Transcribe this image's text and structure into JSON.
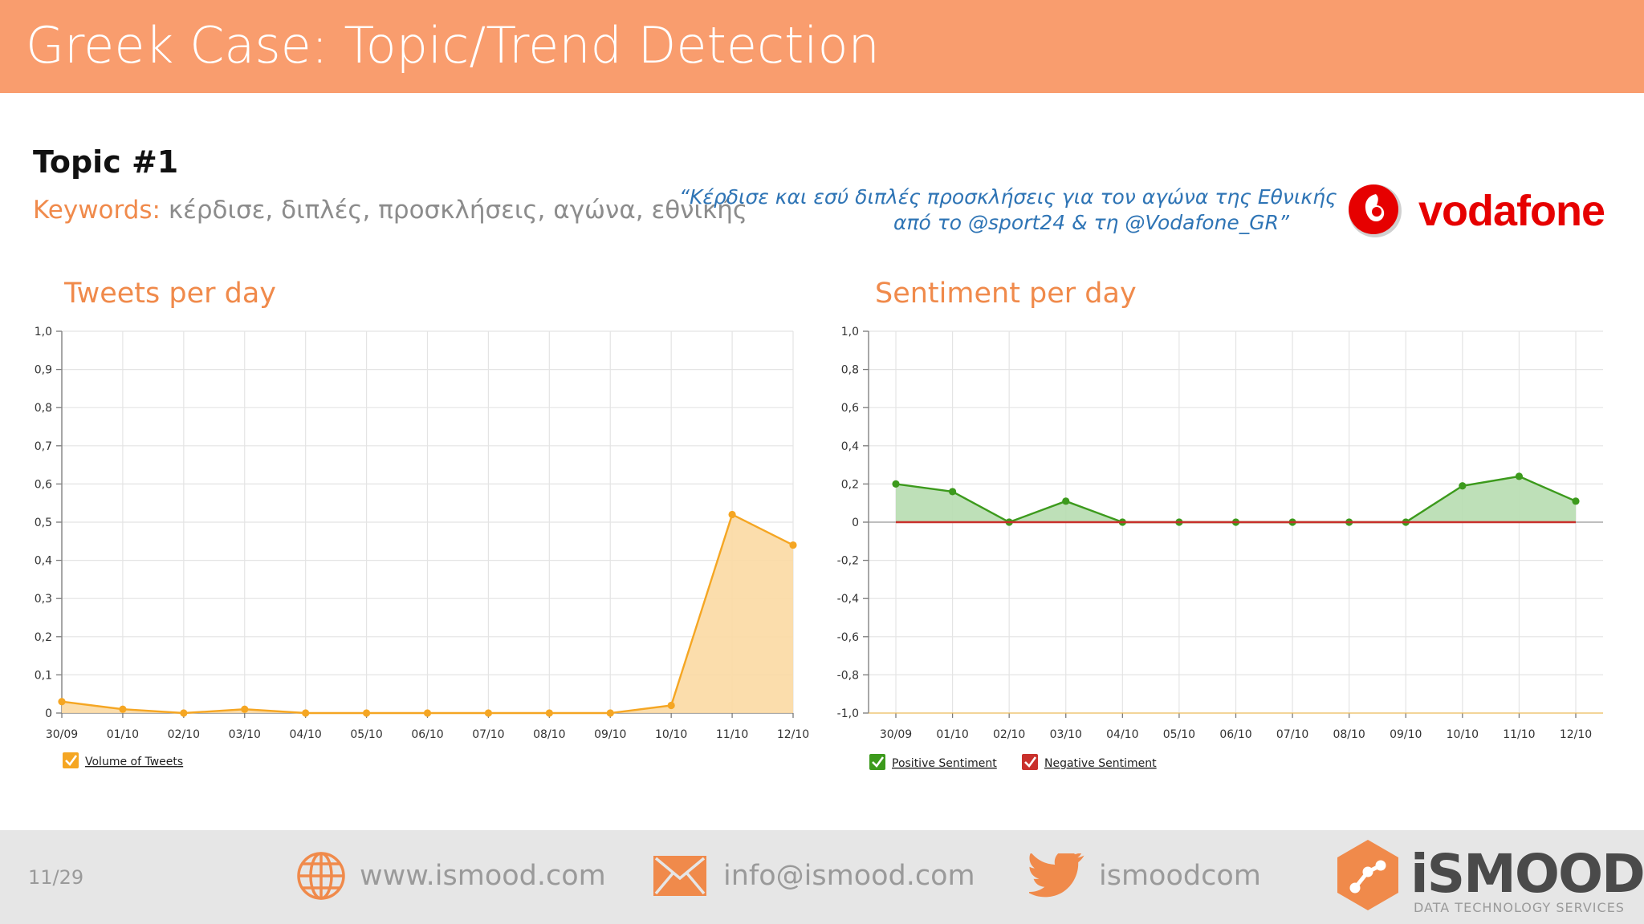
{
  "header": {
    "title": "Greek Case: Topic/Trend Detection"
  },
  "topic": {
    "heading": "Topic #1",
    "keywords_label": "Keywords:",
    "keywords": " κέρδισε, διπλές, προσκλήσεις, αγώνα, εθνικής"
  },
  "quote": {
    "line1": "“Κέρδισε και εσύ διπλές προσκλήσεις για τον αγώνα της Εθνικής",
    "line2": "από το @sport24 & τη @Vodafone_GR”"
  },
  "brand": {
    "name": "vodafone",
    "color": "#e60000"
  },
  "colors": {
    "accent": "#f99d6e",
    "tweets": "#f5a623",
    "positive": "#3c9a1c",
    "negative": "#c9302c"
  },
  "chart_data": [
    {
      "type": "area",
      "title": "Tweets per day",
      "categories": [
        "30/09",
        "01/10",
        "02/10",
        "03/10",
        "04/10",
        "05/10",
        "06/10",
        "07/10",
        "08/10",
        "09/10",
        "10/10",
        "11/10",
        "12/10"
      ],
      "series": [
        {
          "name": "Volume of Tweets",
          "values": [
            0.03,
            0.01,
            0,
            0.01,
            0,
            0,
            0,
            0,
            0,
            0,
            0.02,
            0.52,
            0.44
          ]
        }
      ],
      "ylim": [
        0,
        1.0
      ],
      "yticks": [
        "0",
        "0,1",
        "0,2",
        "0,3",
        "0,4",
        "0,5",
        "0,6",
        "0,7",
        "0,8",
        "0,9",
        "1,0"
      ],
      "grid": true,
      "legend": "bottom-left"
    },
    {
      "type": "area",
      "title": "Sentiment per day",
      "categories": [
        "30/09",
        "01/10",
        "02/10",
        "03/10",
        "04/10",
        "05/10",
        "06/10",
        "07/10",
        "08/10",
        "09/10",
        "10/10",
        "11/10",
        "12/10"
      ],
      "series": [
        {
          "name": "Positive Sentiment",
          "values": [
            0.2,
            0.16,
            0,
            0.11,
            0,
            0,
            0,
            0,
            0,
            0,
            0.19,
            0.24,
            0.11
          ]
        },
        {
          "name": "Negative Sentiment",
          "values": [
            0,
            0,
            0,
            0,
            0,
            0,
            0,
            0,
            0,
            0,
            0,
            0,
            0
          ]
        }
      ],
      "ylim": [
        -1.0,
        1.0
      ],
      "yticks": [
        "-1,0",
        "-0,8",
        "-0,6",
        "-0,4",
        "-0,2",
        "0",
        "0,2",
        "0,4",
        "0,6",
        "0,8",
        "1,0"
      ],
      "grid": true,
      "legend": "bottom-left"
    }
  ],
  "footer": {
    "page": "11/29",
    "website": "www.ismood.com",
    "email": "info@ismood.com",
    "twitter": "ismoodcom",
    "logo_main": "iSMOOD",
    "logo_sub": "DATA TECHNOLOGY SERVICES"
  },
  "icons": [
    "globe-icon",
    "envelope-icon",
    "twitter-bird-icon",
    "vodafone-logo",
    "ismood-logo",
    "checkbox-icon"
  ]
}
